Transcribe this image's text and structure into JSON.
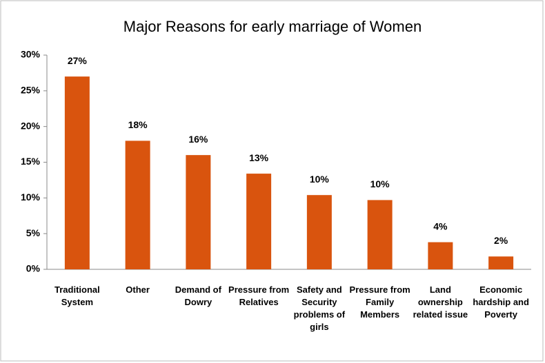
{
  "chart_data": {
    "type": "bar",
    "title": "Major Reasons for early marriage of Women",
    "categories": [
      "Traditional System",
      "Other",
      "Demand of Dowry",
      "Pressure from Relatives",
      "Safety and Security problems of girls",
      "Pressure from Family Members",
      "Land ownership related issue",
      "Economic hardship and Poverty"
    ],
    "values": [
      27,
      18,
      16,
      13.4,
      10.4,
      9.7,
      3.8,
      1.8
    ],
    "value_labels": [
      "27%",
      "18%",
      "16%",
      "13%",
      "10%",
      "10%",
      "4%",
      "2%"
    ],
    "color": "#d9540e",
    "ylim": [
      0,
      30
    ],
    "yticks": [
      {
        "value": 0,
        "label": "0%"
      },
      {
        "value": 5,
        "label": "5%"
      },
      {
        "value": 10,
        "label": "10%"
      },
      {
        "value": 15,
        "label": "15%"
      },
      {
        "value": 20,
        "label": "20%"
      },
      {
        "value": 25,
        "label": "25%"
      },
      {
        "value": 30,
        "label": "30%"
      }
    ],
    "grid": false
  }
}
